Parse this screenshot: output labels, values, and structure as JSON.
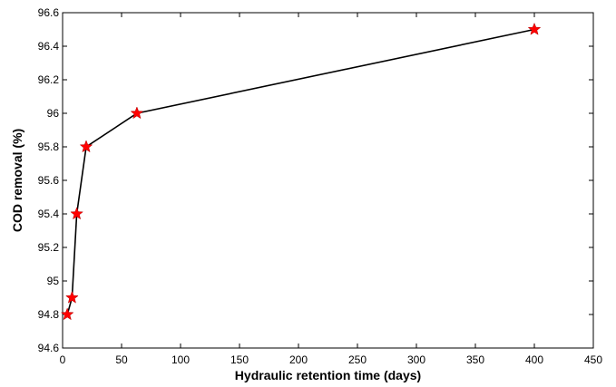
{
  "chart_data": {
    "type": "line",
    "title": "",
    "xlabel": "Hydraulic retention time (days)",
    "ylabel": "COD removal (%)",
    "xlim": [
      0,
      450
    ],
    "ylim": [
      94.6,
      96.6
    ],
    "x_ticks": [
      0,
      50,
      100,
      150,
      200,
      250,
      300,
      350,
      400,
      450
    ],
    "y_ticks": [
      94.6,
      94.8,
      95,
      95.2,
      95.4,
      95.6,
      95.8,
      96,
      96.2,
      96.4,
      96.6
    ],
    "y_tick_labels": [
      "94.6",
      "94.8",
      "95",
      "95.2",
      "95.4",
      "95.6",
      "95.8",
      "96",
      "96.2",
      "96.4",
      "96.6"
    ],
    "grid": false,
    "legend": "none",
    "series": [
      {
        "line_color": "#000000",
        "marker": "star",
        "marker_color": "#ff0000",
        "points": [
          {
            "x": 4,
            "y": 94.8
          },
          {
            "x": 8,
            "y": 94.9
          },
          {
            "x": 12,
            "y": 95.4
          },
          {
            "x": 20,
            "y": 95.8
          },
          {
            "x": 63,
            "y": 96.0
          },
          {
            "x": 400,
            "y": 96.5
          }
        ]
      }
    ]
  }
}
